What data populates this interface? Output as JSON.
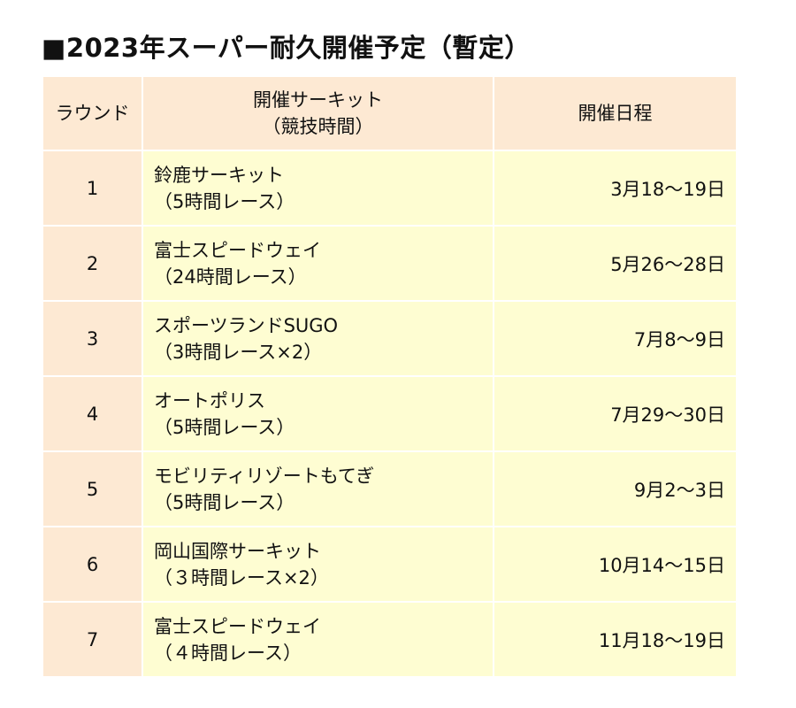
{
  "title": "■2023年スーパー耐久開催予定（暫定）",
  "header": {
    "round": "ラウンド",
    "circuit_line1": "開催サーキット",
    "circuit_line2": "（競技時間）",
    "date": "開催日程"
  },
  "rows": [
    {
      "round": "1",
      "circuit": "鈴鹿サーキット",
      "format": "（5時間レース）",
      "date": "3月18～19日"
    },
    {
      "round": "2",
      "circuit": "富士スピードウェイ",
      "format": "（24時間レース）",
      "date": "5月26～28日"
    },
    {
      "round": "3",
      "circuit": "スポーツランドSUGO",
      "format": "（3時間レース×2）",
      "date": "7月8～9日"
    },
    {
      "round": "4",
      "circuit": "オートポリス",
      "format": "（5時間レース）",
      "date": "7月29～30日"
    },
    {
      "round": "5",
      "circuit": "モビリティリゾートもてぎ",
      "format": "（5時間レース）",
      "date": "9月2～3日"
    },
    {
      "round": "6",
      "circuit": "岡山国際サーキット",
      "format": "（３時間レース×2）",
      "date": "10月14～15日"
    },
    {
      "round": "7",
      "circuit": "富士スピードウェイ",
      "format": "（４時間レース）",
      "date": "11月18～19日"
    }
  ]
}
